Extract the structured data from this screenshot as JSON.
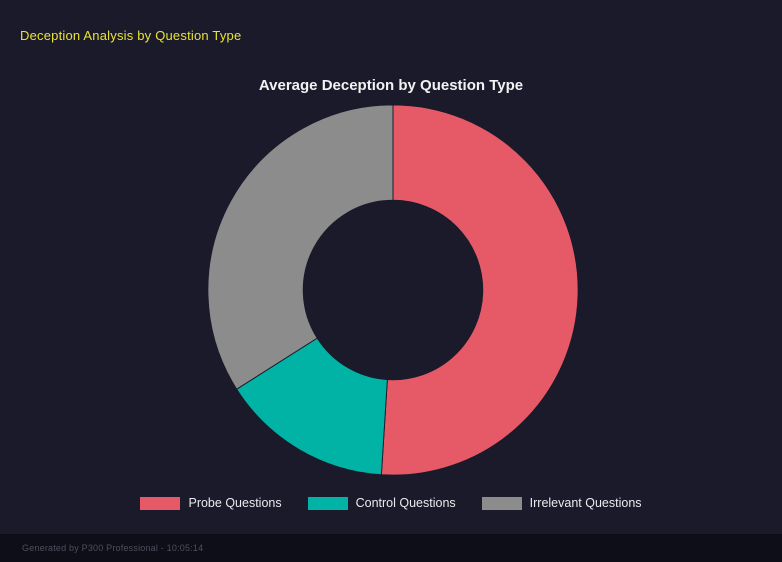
{
  "header": {
    "title": "Deception Analysis by Question Type"
  },
  "chart_data": {
    "type": "pie",
    "subtype": "donut",
    "title": "Average Deception by Question Type",
    "labels": [
      "Probe Questions",
      "Control Questions",
      "Irrelevant Questions"
    ],
    "values": [
      51,
      15,
      34
    ],
    "colors": [
      "#e65a67",
      "#00b3a4",
      "#8c8c8c"
    ],
    "cutout_ratio": 0.48,
    "legend_position": "bottom",
    "start_angle_deg": -90,
    "direction": "clockwise"
  },
  "footer": {
    "text": "Generated by P300 Professional - 10:05:14"
  },
  "colors": {
    "background": "#1a1a2b",
    "footer_background": "#0e0e18",
    "header_accent": "#e9e234",
    "title_text": "#f2f2f4"
  }
}
